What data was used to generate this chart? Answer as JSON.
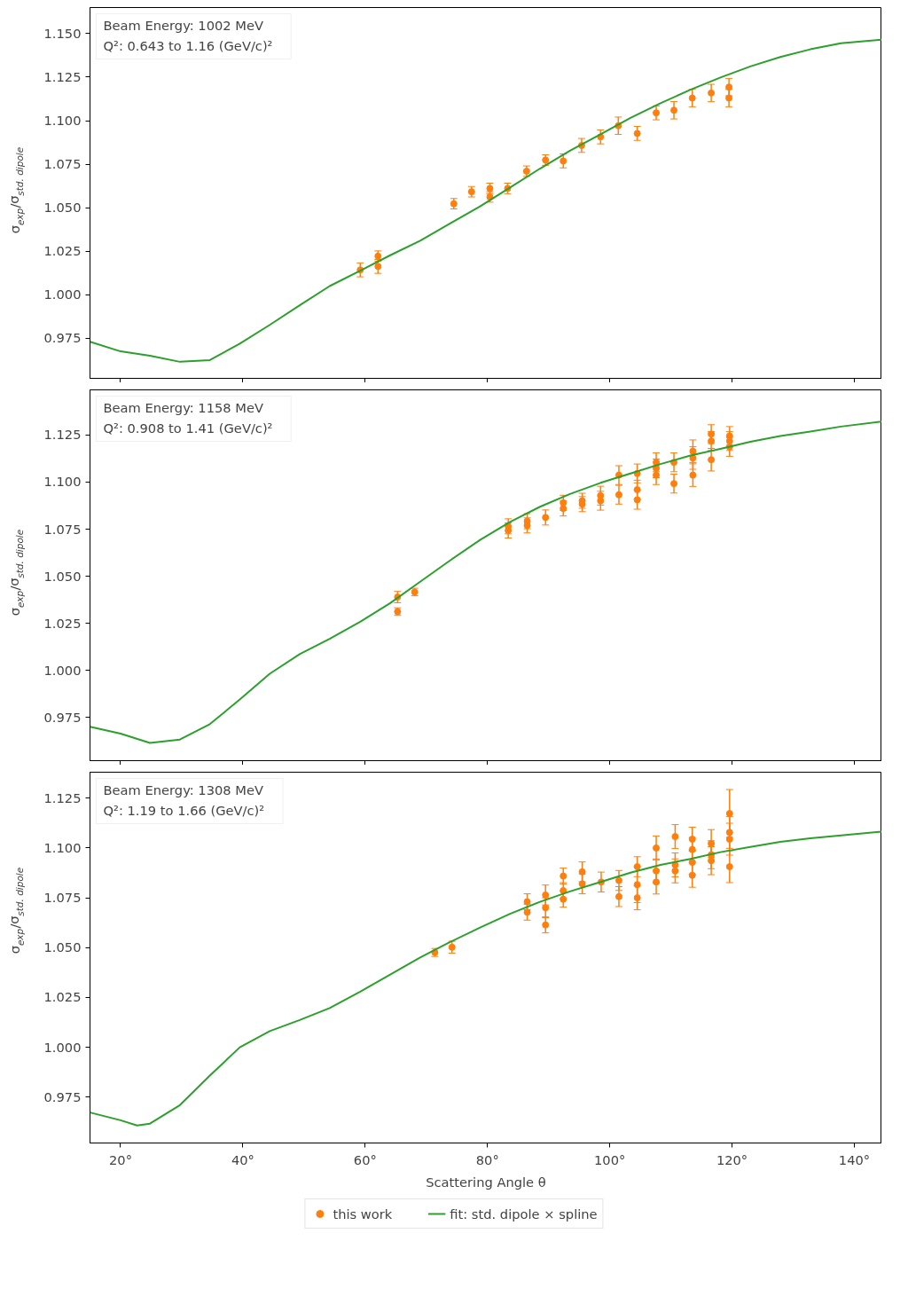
{
  "chart_data": [
    {
      "type": "scatter",
      "xlim": [
        15,
        144.5
      ],
      "ylim": [
        0.952,
        1.165
      ],
      "tick_labels": "y",
      "grid": false,
      "ylabel": "σ$_{exp}$/σ$_{std. dipole}$",
      "xticks": [
        {
          "value": 20,
          "label": null
        },
        {
          "value": 40,
          "label": null
        },
        {
          "value": 60,
          "label": null
        },
        {
          "value": 80,
          "label": null
        },
        {
          "value": 100,
          "label": null
        },
        {
          "value": 120,
          "label": null
        },
        {
          "value": 140,
          "label": null
        }
      ],
      "yticks": [
        {
          "value": 0.975,
          "label": "0.975"
        },
        {
          "value": 1.0,
          "label": "1.000"
        },
        {
          "value": 1.025,
          "label": "1.025"
        },
        {
          "value": 1.05,
          "label": "1.050"
        },
        {
          "value": 1.075,
          "label": "1.075"
        },
        {
          "value": 1.1,
          "label": "1.100"
        },
        {
          "value": 1.125,
          "label": "1.125"
        },
        {
          "value": 1.15,
          "label": "1.150"
        }
      ],
      "annotations": [
        "Beam Energy: 1002 MeV",
        "Q²: 0.643 to 1.16 (GeV/c)²"
      ],
      "series": [
        {
          "color": "#ff7f0e",
          "marker": "circle",
          "x": [
            59.2,
            62.1,
            62.1,
            74.5,
            77.4,
            80.4,
            80.4,
            83.3,
            86.4,
            89.5,
            92.4,
            95.4,
            98.5,
            101.4,
            104.5,
            107.6,
            110.5,
            113.5,
            116.6,
            119.5,
            119.5
          ],
          "values": [
            1.0143,
            1.0163,
            1.0222,
            1.0523,
            1.0592,
            1.0611,
            1.0562,
            1.0611,
            1.071,
            1.0774,
            1.0769,
            1.0858,
            1.0907,
            1.0971,
            1.0927,
            1.1045,
            1.106,
            1.113,
            1.1159,
            1.1193,
            1.113
          ],
          "errors": [
            0.004,
            0.004,
            0.003,
            0.003,
            0.003,
            0.003,
            0.003,
            0.003,
            0.003,
            0.003,
            0.004,
            0.004,
            0.004,
            0.005,
            0.004,
            0.004,
            0.005,
            0.005,
            0.005,
            0.005,
            0.005
          ]
        },
        {
          "type": "line",
          "color": "#2ca02c",
          "x": [
            15,
            20,
            24.8,
            29.7,
            34.6,
            39.5,
            44.4,
            49.3,
            54.2,
            59.2,
            64.1,
            69,
            73.9,
            78.8,
            83.7,
            88.6,
            93.5,
            98.5,
            103.4,
            108.3,
            113.2,
            118.1,
            123,
            127.9,
            132.8,
            137.8,
            144.5
          ],
          "values": [
            0.973,
            0.9675,
            0.965,
            0.9615,
            0.9625,
            0.9719,
            0.9827,
            0.994,
            1.005,
            1.0138,
            1.0227,
            1.031,
            1.041,
            1.0508,
            1.0616,
            1.0725,
            1.0828,
            1.0922,
            1.1016,
            1.11,
            1.1178,
            1.1248,
            1.1312,
            1.1366,
            1.141,
            1.1445,
            1.1465
          ]
        }
      ]
    },
    {
      "type": "scatter",
      "xlim": [
        15,
        144.5
      ],
      "ylim": [
        0.952,
        1.149
      ],
      "tick_labels": "y",
      "grid": false,
      "ylabel": "σ$_{exp}$/σ$_{std. dipole}$",
      "xticks": [
        {
          "value": 20,
          "label": null
        },
        {
          "value": 40,
          "label": null
        },
        {
          "value": 60,
          "label": null
        },
        {
          "value": 80,
          "label": null
        },
        {
          "value": 100,
          "label": null
        },
        {
          "value": 120,
          "label": null
        },
        {
          "value": 140,
          "label": null
        }
      ],
      "yticks": [
        {
          "value": 0.975,
          "label": "0.975"
        },
        {
          "value": 1.0,
          "label": "1.000"
        },
        {
          "value": 1.025,
          "label": "1.025"
        },
        {
          "value": 1.05,
          "label": "1.050"
        },
        {
          "value": 1.075,
          "label": "1.075"
        },
        {
          "value": 1.1,
          "label": "1.100"
        },
        {
          "value": 1.125,
          "label": "1.125"
        }
      ],
      "annotations": [
        "Beam Energy: 1158 MeV",
        "Q²: 0.908 to 1.41 (GeV/c)²"
      ],
      "series": [
        {
          "color": "#ff7f0e",
          "marker": "circle",
          "x": [
            65.3,
            65.3,
            68.1,
            83.4,
            83.4,
            86.5,
            86.5,
            89.5,
            92.4,
            92.4,
            95.5,
            95.5,
            98.5,
            98.5,
            101.5,
            101.5,
            104.5,
            104.5,
            104.5,
            107.6,
            107.6,
            107.6,
            110.5,
            110.5,
            113.6,
            113.6,
            113.6,
            116.6,
            116.6,
            116.6,
            119.6,
            119.6,
            119.6
          ],
          "values": [
            1.0389,
            1.0312,
            1.0416,
            1.0765,
            1.0743,
            1.0792,
            1.077,
            1.0812,
            1.089,
            1.086,
            1.0901,
            1.0883,
            1.0928,
            1.0901,
            1.1037,
            1.0933,
            1.1046,
            1.096,
            1.0906,
            1.1105,
            1.1073,
            1.1037,
            1.1105,
            1.0992,
            1.1164,
            1.1128,
            1.1037,
            1.1255,
            1.1218,
            1.1119,
            1.1245,
            1.1218,
            1.1187
          ],
          "errors": [
            0.003,
            0.002,
            0.002,
            0.004,
            0.004,
            0.004,
            0.004,
            0.004,
            0.004,
            0.004,
            0.004,
            0.004,
            0.005,
            0.005,
            0.005,
            0.005,
            0.005,
            0.005,
            0.005,
            0.005,
            0.005,
            0.005,
            0.005,
            0.005,
            0.006,
            0.006,
            0.006,
            0.005,
            0.005,
            0.006,
            0.005,
            0.005,
            0.005
          ]
        },
        {
          "type": "line",
          "color": "#2ca02c",
          "x": [
            15,
            20,
            24.8,
            29.7,
            34.6,
            39.5,
            44.4,
            49.3,
            54.2,
            59.2,
            64.1,
            69,
            73.9,
            78.8,
            83.7,
            88.6,
            93.5,
            98.5,
            103.4,
            108.3,
            113.2,
            118.1,
            123,
            127.9,
            132.8,
            137.8,
            144.5
          ],
          "values": [
            0.97,
            0.9664,
            0.9614,
            0.9632,
            0.9714,
            0.9845,
            0.9982,
            1.0086,
            1.0167,
            1.0258,
            1.0357,
            1.0471,
            1.0584,
            1.0693,
            1.0788,
            1.0869,
            1.0937,
            1.0996,
            1.1046,
            1.1096,
            1.1141,
            1.1177,
            1.1214,
            1.1245,
            1.1268,
            1.1295,
            1.1322
          ]
        }
      ]
    },
    {
      "type": "scatter",
      "xlim": [
        15,
        144.5
      ],
      "ylim": [
        0.952,
        1.138
      ],
      "grid": false,
      "legend": "bottom",
      "ylabel": "σ$_{exp}$/σ$_{std. dipole}$",
      "xlabel": "Scattering Angle θ",
      "xticks": [
        {
          "value": 20,
          "label": "20°"
        },
        {
          "value": 40,
          "label": "40°"
        },
        {
          "value": 60,
          "label": "60°"
        },
        {
          "value": 80,
          "label": "80°"
        },
        {
          "value": 100,
          "label": "100°"
        },
        {
          "value": 120,
          "label": "120°"
        },
        {
          "value": 140,
          "label": "140°"
        }
      ],
      "yticks": [
        {
          "value": 0.975,
          "label": "0.975"
        },
        {
          "value": 1.0,
          "label": "1.000"
        },
        {
          "value": 1.025,
          "label": "1.025"
        },
        {
          "value": 1.05,
          "label": "1.050"
        },
        {
          "value": 1.075,
          "label": "1.075"
        },
        {
          "value": 1.1,
          "label": "1.100"
        },
        {
          "value": 1.125,
          "label": "1.125"
        }
      ],
      "annotations": [
        "Beam Energy: 1308 MeV",
        "Q²: 1.19 to 1.66 (GeV/c)²"
      ],
      "series": [
        {
          "name": "this work",
          "color": "#ff7f0e",
          "marker": "circle",
          "x": [
            71.4,
            74.2,
            86.5,
            86.5,
            89.5,
            89.5,
            89.5,
            92.4,
            92.4,
            92.4,
            95.5,
            95.5,
            98.6,
            101.5,
            101.5,
            104.5,
            104.5,
            104.5,
            107.6,
            107.6,
            107.6,
            110.7,
            110.7,
            110.7,
            113.5,
            113.5,
            113.5,
            113.5,
            116.6,
            116.6,
            116.6,
            119.6,
            119.6,
            119.6,
            119.6
          ],
          "values": [
            1.0476,
            1.0502,
            1.073,
            1.0678,
            1.0764,
            1.07,
            1.0614,
            1.0859,
            1.0786,
            1.0743,
            1.088,
            1.082,
            1.0829,
            1.0837,
            1.0756,
            1.0906,
            1.0816,
            1.075,
            1.1,
            1.0885,
            1.0829,
            1.1057,
            1.0915,
            1.0885,
            1.1044,
            1.0992,
            1.0928,
            1.0863,
            1.1022,
            1.0966,
            1.0936,
            1.1173,
            1.1078,
            1.1044,
            1.0906
          ],
          "errors": [
            0.002,
            0.003,
            0.004,
            0.004,
            0.005,
            0.005,
            0.004,
            0.004,
            0.004,
            0.004,
            0.005,
            0.005,
            0.005,
            0.005,
            0.005,
            0.005,
            0.009,
            0.006,
            0.006,
            0.006,
            0.006,
            0.006,
            0.006,
            0.006,
            0.006,
            0.006,
            0.006,
            0.006,
            0.007,
            0.007,
            0.007,
            0.012,
            0.008,
            0.008,
            0.008
          ]
        },
        {
          "type": "line",
          "name": "fit: std. dipole × spline",
          "color": "#2ca02c",
          "x": [
            15,
            20,
            22.7,
            24.8,
            29.7,
            34.6,
            39.5,
            44.4,
            49.3,
            54.2,
            59.2,
            64.1,
            69,
            73.9,
            78.8,
            83.7,
            88.6,
            93.5,
            98.5,
            103.4,
            108.3,
            113.2,
            118.1,
            123,
            127.9,
            132.8,
            144.5
          ],
          "values": [
            0.9673,
            0.9634,
            0.9608,
            0.9617,
            0.971,
            0.9858,
            1.0,
            1.0081,
            1.0137,
            1.0197,
            1.0279,
            1.0365,
            1.0451,
            1.0528,
            1.0601,
            1.067,
            1.073,
            1.0782,
            1.0829,
            1.0876,
            1.0915,
            1.0945,
            1.0979,
            1.1005,
            1.1031,
            1.1048,
            1.1082
          ]
        }
      ]
    }
  ]
}
